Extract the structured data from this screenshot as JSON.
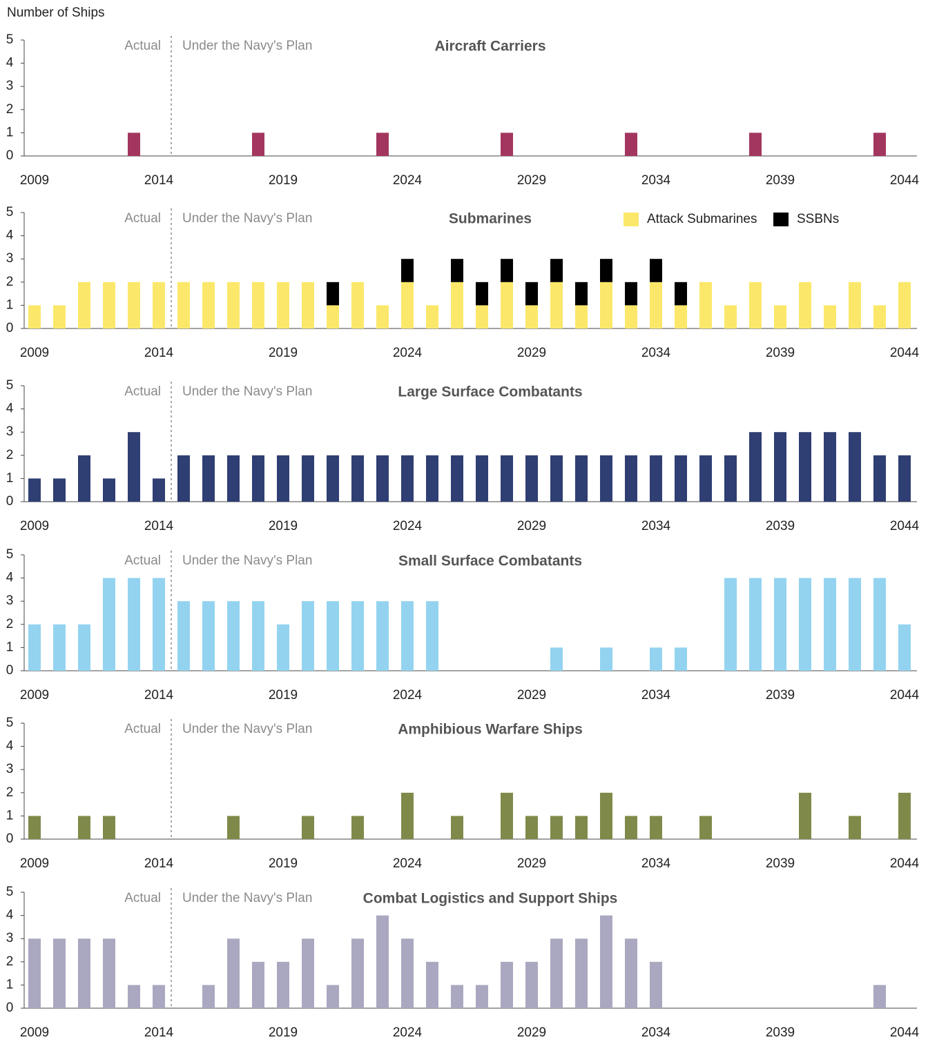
{
  "y_label": "Number of Ships",
  "chart_data": [
    {
      "type": "bar",
      "title": "Aircraft Carriers",
      "annotations": [
        "Actual",
        "Under the Navy's Plan"
      ],
      "divider_x": 2014.5,
      "x": [
        2009,
        2010,
        2011,
        2012,
        2013,
        2014,
        2015,
        2016,
        2017,
        2018,
        2019,
        2020,
        2021,
        2022,
        2023,
        2024,
        2025,
        2026,
        2027,
        2028,
        2029,
        2030,
        2031,
        2032,
        2033,
        2034,
        2035,
        2036,
        2037,
        2038,
        2039,
        2040,
        2041,
        2042,
        2043,
        2044
      ],
      "values": [
        0,
        0,
        0,
        0,
        1,
        0,
        0,
        0,
        0,
        1,
        0,
        0,
        0,
        0,
        1,
        0,
        0,
        0,
        0,
        1,
        0,
        0,
        0,
        0,
        1,
        0,
        0,
        0,
        0,
        1,
        0,
        0,
        0,
        0,
        1,
        0
      ],
      "color": "#a3365f",
      "xlim": [
        2008.5,
        2044.5
      ],
      "xticks": [
        2009,
        2014,
        2019,
        2024,
        2029,
        2034,
        2039,
        2044
      ],
      "ylim": [
        0,
        5
      ],
      "yticks": [
        0,
        1,
        2,
        3,
        4,
        5
      ]
    },
    {
      "type": "bar",
      "title": "Submarines",
      "annotations": [
        "Actual",
        "Under the Navy's Plan"
      ],
      "divider_x": 2014.5,
      "stacked": true,
      "legend": "top-right",
      "x": [
        2009,
        2010,
        2011,
        2012,
        2013,
        2014,
        2015,
        2016,
        2017,
        2018,
        2019,
        2020,
        2021,
        2022,
        2023,
        2024,
        2025,
        2026,
        2027,
        2028,
        2029,
        2030,
        2031,
        2032,
        2033,
        2034,
        2035,
        2036,
        2037,
        2038,
        2039,
        2040,
        2041,
        2042,
        2043,
        2044
      ],
      "series": [
        {
          "name": "Attack Submarines",
          "color": "#fbe86a",
          "values": [
            1,
            1,
            2,
            2,
            2,
            2,
            2,
            2,
            2,
            2,
            2,
            2,
            1,
            2,
            1,
            2,
            1,
            2,
            1,
            2,
            1,
            2,
            1,
            2,
            1,
            2,
            1,
            2,
            1,
            2,
            1,
            2,
            1,
            2,
            1,
            2
          ]
        },
        {
          "name": "SSBNs",
          "color": "#000000",
          "values": [
            0,
            0,
            0,
            0,
            0,
            0,
            0,
            0,
            0,
            0,
            0,
            0,
            1,
            0,
            0,
            1,
            0,
            1,
            1,
            1,
            1,
            1,
            1,
            1,
            1,
            1,
            1,
            0,
            0,
            0,
            0,
            0,
            0,
            0,
            0,
            0
          ]
        }
      ],
      "xlim": [
        2008.5,
        2044.5
      ],
      "xticks": [
        2009,
        2014,
        2019,
        2024,
        2029,
        2034,
        2039,
        2044
      ],
      "ylim": [
        0,
        5
      ],
      "yticks": [
        0,
        1,
        2,
        3,
        4,
        5
      ]
    },
    {
      "type": "bar",
      "title": "Large Surface Combatants",
      "annotations": [
        "Actual",
        "Under the Navy's Plan"
      ],
      "divider_x": 2014.5,
      "x": [
        2009,
        2010,
        2011,
        2012,
        2013,
        2014,
        2015,
        2016,
        2017,
        2018,
        2019,
        2020,
        2021,
        2022,
        2023,
        2024,
        2025,
        2026,
        2027,
        2028,
        2029,
        2030,
        2031,
        2032,
        2033,
        2034,
        2035,
        2036,
        2037,
        2038,
        2039,
        2040,
        2041,
        2042,
        2043,
        2044
      ],
      "values": [
        1,
        1,
        2,
        1,
        3,
        1,
        2,
        2,
        2,
        2,
        2,
        2,
        2,
        2,
        2,
        2,
        2,
        2,
        2,
        2,
        2,
        2,
        2,
        2,
        2,
        2,
        2,
        2,
        2,
        3,
        3,
        3,
        3,
        3,
        2,
        2
      ],
      "color": "#2f3e73",
      "xlim": [
        2008.5,
        2044.5
      ],
      "xticks": [
        2009,
        2014,
        2019,
        2024,
        2029,
        2034,
        2039,
        2044
      ],
      "ylim": [
        0,
        5
      ],
      "yticks": [
        0,
        1,
        2,
        3,
        4,
        5
      ]
    },
    {
      "type": "bar",
      "title": "Small Surface Combatants",
      "annotations": [
        "Actual",
        "Under the Navy's Plan"
      ],
      "divider_x": 2014.5,
      "x": [
        2009,
        2010,
        2011,
        2012,
        2013,
        2014,
        2015,
        2016,
        2017,
        2018,
        2019,
        2020,
        2021,
        2022,
        2023,
        2024,
        2025,
        2026,
        2027,
        2028,
        2029,
        2030,
        2031,
        2032,
        2033,
        2034,
        2035,
        2036,
        2037,
        2038,
        2039,
        2040,
        2041,
        2042,
        2043,
        2044
      ],
      "values": [
        2,
        2,
        2,
        4,
        4,
        4,
        3,
        3,
        3,
        3,
        2,
        3,
        3,
        3,
        3,
        3,
        3,
        0,
        0,
        0,
        0,
        1,
        0,
        1,
        0,
        1,
        1,
        0,
        4,
        4,
        4,
        4,
        4,
        4,
        4,
        2
      ],
      "color": "#93d3f0",
      "xlim": [
        2008.5,
        2044.5
      ],
      "xticks": [
        2009,
        2014,
        2019,
        2024,
        2029,
        2034,
        2039,
        2044
      ],
      "ylim": [
        0,
        5
      ],
      "yticks": [
        0,
        1,
        2,
        3,
        4,
        5
      ]
    },
    {
      "type": "bar",
      "title": "Amphibious Warfare Ships",
      "annotations": [
        "Actual",
        "Under the Navy's Plan"
      ],
      "divider_x": 2014.5,
      "x": [
        2009,
        2010,
        2011,
        2012,
        2013,
        2014,
        2015,
        2016,
        2017,
        2018,
        2019,
        2020,
        2021,
        2022,
        2023,
        2024,
        2025,
        2026,
        2027,
        2028,
        2029,
        2030,
        2031,
        2032,
        2033,
        2034,
        2035,
        2036,
        2037,
        2038,
        2039,
        2040,
        2041,
        2042,
        2043,
        2044
      ],
      "values": [
        1,
        0,
        1,
        1,
        0,
        0,
        0,
        0,
        1,
        0,
        0,
        1,
        0,
        1,
        0,
        2,
        0,
        1,
        0,
        2,
        1,
        1,
        1,
        2,
        1,
        1,
        0,
        1,
        0,
        0,
        0,
        2,
        0,
        1,
        0,
        2
      ],
      "color": "#7f8a4a",
      "xlim": [
        2008.5,
        2044.5
      ],
      "xticks": [
        2009,
        2014,
        2019,
        2024,
        2029,
        2034,
        2039,
        2044
      ],
      "ylim": [
        0,
        5
      ],
      "yticks": [
        0,
        1,
        2,
        3,
        4,
        5
      ]
    },
    {
      "type": "bar",
      "title": "Combat Logistics and Support Ships",
      "annotations": [
        "Actual",
        "Under the Navy's Plan"
      ],
      "divider_x": 2014.5,
      "x": [
        2009,
        2010,
        2011,
        2012,
        2013,
        2014,
        2015,
        2016,
        2017,
        2018,
        2019,
        2020,
        2021,
        2022,
        2023,
        2024,
        2025,
        2026,
        2027,
        2028,
        2029,
        2030,
        2031,
        2032,
        2033,
        2034,
        2035,
        2036,
        2037,
        2038,
        2039,
        2040,
        2041,
        2042,
        2043,
        2044
      ],
      "values": [
        3,
        3,
        3,
        3,
        1,
        1,
        0,
        1,
        3,
        2,
        2,
        3,
        1,
        3,
        4,
        3,
        2,
        1,
        1,
        2,
        2,
        3,
        3,
        4,
        3,
        2,
        0,
        0,
        0,
        0,
        0,
        0,
        0,
        0,
        1,
        0
      ],
      "color": "#aaa8c0",
      "xlim": [
        2008.5,
        2044.5
      ],
      "xticks": [
        2009,
        2014,
        2019,
        2024,
        2029,
        2034,
        2039,
        2044
      ],
      "ylim": [
        0,
        5
      ],
      "yticks": [
        0,
        1,
        2,
        3,
        4,
        5
      ]
    }
  ]
}
